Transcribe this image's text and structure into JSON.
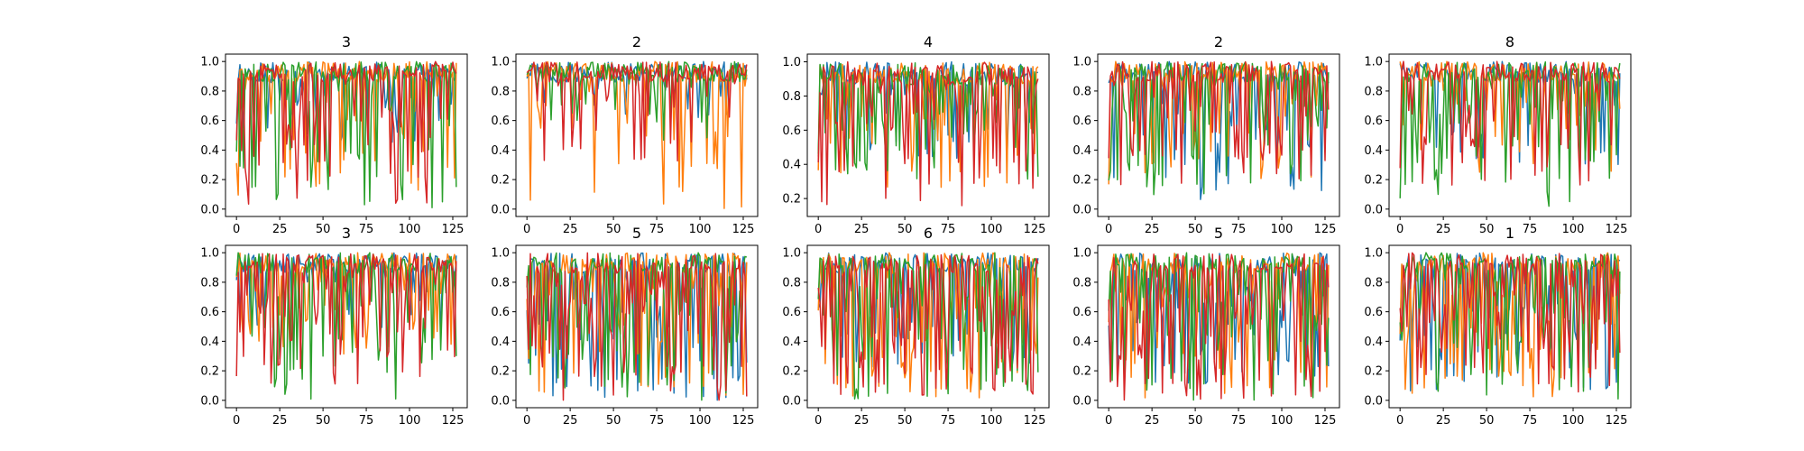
{
  "chart_data": [
    {
      "type": "line",
      "title": "3",
      "x_range": [
        0,
        127
      ],
      "xlim": [
        -6.35,
        133.35
      ],
      "xticks": [
        0,
        25,
        50,
        75,
        100,
        125
      ],
      "ylim": [
        -0.05,
        1.05
      ],
      "yticks": [
        "0.0",
        "0.2",
        "0.4",
        "0.6",
        "0.8",
        "1.0"
      ],
      "series": [
        {
          "color": "#1f77b4",
          "min": 0.45,
          "dip_prob": 0.3,
          "seed": 11
        },
        {
          "color": "#ff7f0e",
          "min": 0.0,
          "dip_prob": 0.25,
          "seed": 12
        },
        {
          "color": "#2ca02c",
          "min": 0.0,
          "dip_prob": 0.3,
          "seed": 13
        },
        {
          "color": "#d62728",
          "min": 0.0,
          "dip_prob": 0.4,
          "seed": 14
        }
      ]
    },
    {
      "type": "line",
      "title": "2",
      "x_range": [
        0,
        127
      ],
      "xlim": [
        -6.35,
        133.35
      ],
      "xticks": [
        0,
        25,
        50,
        75,
        100,
        125
      ],
      "ylim": [
        -0.05,
        1.05
      ],
      "yticks": [
        "0.0",
        "0.2",
        "0.4",
        "0.6",
        "0.8",
        "1.0"
      ],
      "series": [
        {
          "color": "#1f77b4",
          "min": 0.6,
          "dip_prob": 0.12,
          "seed": 21
        },
        {
          "color": "#ff7f0e",
          "min": 0.0,
          "dip_prob": 0.15,
          "seed": 22
        },
        {
          "color": "#2ca02c",
          "min": 0.45,
          "dip_prob": 0.12,
          "seed": 23
        },
        {
          "color": "#d62728",
          "min": 0.3,
          "dip_prob": 0.18,
          "seed": 24
        }
      ]
    },
    {
      "type": "line",
      "title": "4",
      "x_range": [
        0,
        127
      ],
      "xlim": [
        -6.35,
        133.35
      ],
      "xticks": [
        0,
        25,
        50,
        75,
        100,
        125
      ],
      "ylim": [
        0.095,
        1.045
      ],
      "yticks": [
        "0.2",
        "0.4",
        "0.6",
        "0.8",
        "1.0"
      ],
      "series": [
        {
          "color": "#1f77b4",
          "min": 0.4,
          "dip_prob": 0.3,
          "seed": 31
        },
        {
          "color": "#ff7f0e",
          "min": 0.25,
          "dip_prob": 0.35,
          "seed": 32
        },
        {
          "color": "#2ca02c",
          "min": 0.3,
          "dip_prob": 0.35,
          "seed": 33
        },
        {
          "color": "#d62728",
          "min": 0.15,
          "dip_prob": 0.4,
          "seed": 34
        }
      ]
    },
    {
      "type": "line",
      "title": "2",
      "x_range": [
        0,
        127
      ],
      "xlim": [
        -6.35,
        133.35
      ],
      "xticks": [
        0,
        25,
        50,
        75,
        100,
        125
      ],
      "ylim": [
        -0.05,
        1.05
      ],
      "yticks": [
        "0.0",
        "0.2",
        "0.4",
        "0.6",
        "0.8",
        "1.0"
      ],
      "series": [
        {
          "color": "#1f77b4",
          "min": 0.05,
          "dip_prob": 0.3,
          "seed": 41
        },
        {
          "color": "#ff7f0e",
          "min": 0.1,
          "dip_prob": 0.3,
          "seed": 42
        },
        {
          "color": "#2ca02c",
          "min": 0.05,
          "dip_prob": 0.35,
          "seed": 43
        },
        {
          "color": "#d62728",
          "min": 0.15,
          "dip_prob": 0.4,
          "seed": 44
        }
      ]
    },
    {
      "type": "line",
      "title": "8",
      "x_range": [
        0,
        127
      ],
      "xlim": [
        -6.35,
        133.35
      ],
      "xticks": [
        0,
        25,
        50,
        75,
        100,
        125
      ],
      "ylim": [
        -0.05,
        1.05
      ],
      "yticks": [
        "0.0",
        "0.2",
        "0.4",
        "0.6",
        "0.8",
        "1.0"
      ],
      "series": [
        {
          "color": "#1f77b4",
          "min": 0.3,
          "dip_prob": 0.25,
          "seed": 51
        },
        {
          "color": "#ff7f0e",
          "min": 0.25,
          "dip_prob": 0.25,
          "seed": 52
        },
        {
          "color": "#2ca02c",
          "min": 0.0,
          "dip_prob": 0.35,
          "seed": 53
        },
        {
          "color": "#d62728",
          "min": 0.15,
          "dip_prob": 0.35,
          "seed": 54
        }
      ]
    },
    {
      "type": "line",
      "title": "3",
      "x_range": [
        0,
        127
      ],
      "xlim": [
        -6.35,
        133.35
      ],
      "xticks": [
        0,
        25,
        50,
        75,
        100,
        125
      ],
      "ylim": [
        -0.05,
        1.05
      ],
      "yticks": [
        "0.0",
        "0.2",
        "0.4",
        "0.6",
        "0.8",
        "1.0"
      ],
      "series": [
        {
          "color": "#1f77b4",
          "min": 0.4,
          "dip_prob": 0.3,
          "seed": 61
        },
        {
          "color": "#ff7f0e",
          "min": 0.3,
          "dip_prob": 0.3,
          "seed": 62
        },
        {
          "color": "#2ca02c",
          "min": 0.0,
          "dip_prob": 0.3,
          "seed": 63
        },
        {
          "color": "#d62728",
          "min": 0.1,
          "dip_prob": 0.45,
          "seed": 64
        }
      ]
    },
    {
      "type": "line",
      "title": "5",
      "x_range": [
        0,
        127
      ],
      "xlim": [
        -6.35,
        133.35
      ],
      "xticks": [
        0,
        25,
        50,
        75,
        100,
        125
      ],
      "ylim": [
        -0.05,
        1.05
      ],
      "yticks": [
        "0.0",
        "0.2",
        "0.4",
        "0.6",
        "0.8",
        "1.0"
      ],
      "series": [
        {
          "color": "#1f77b4",
          "min": 0.0,
          "dip_prob": 0.45,
          "seed": 71
        },
        {
          "color": "#ff7f0e",
          "min": 0.0,
          "dip_prob": 0.45,
          "seed": 72
        },
        {
          "color": "#2ca02c",
          "min": 0.0,
          "dip_prob": 0.45,
          "seed": 73
        },
        {
          "color": "#d62728",
          "min": 0.0,
          "dip_prob": 0.5,
          "seed": 74
        }
      ]
    },
    {
      "type": "line",
      "title": "6",
      "x_range": [
        0,
        127
      ],
      "xlim": [
        -6.35,
        133.35
      ],
      "xticks": [
        0,
        25,
        50,
        75,
        100,
        125
      ],
      "ylim": [
        -0.05,
        1.05
      ],
      "yticks": [
        "0.0",
        "0.2",
        "0.4",
        "0.6",
        "0.8",
        "1.0"
      ],
      "series": [
        {
          "color": "#1f77b4",
          "min": 0.2,
          "dip_prob": 0.35,
          "seed": 81
        },
        {
          "color": "#ff7f0e",
          "min": 0.0,
          "dip_prob": 0.45,
          "seed": 82
        },
        {
          "color": "#2ca02c",
          "min": 0.0,
          "dip_prob": 0.45,
          "seed": 83
        },
        {
          "color": "#d62728",
          "min": 0.0,
          "dip_prob": 0.5,
          "seed": 84
        }
      ]
    },
    {
      "type": "line",
      "title": "5",
      "x_range": [
        0,
        127
      ],
      "xlim": [
        -6.35,
        133.35
      ],
      "xticks": [
        0,
        25,
        50,
        75,
        100,
        125
      ],
      "ylim": [
        -0.05,
        1.05
      ],
      "yticks": [
        "0.0",
        "0.2",
        "0.4",
        "0.6",
        "0.8",
        "1.0"
      ],
      "series": [
        {
          "color": "#1f77b4",
          "min": 0.1,
          "dip_prob": 0.45,
          "seed": 91
        },
        {
          "color": "#ff7f0e",
          "min": 0.0,
          "dip_prob": 0.45,
          "seed": 92
        },
        {
          "color": "#2ca02c",
          "min": 0.0,
          "dip_prob": 0.45,
          "seed": 93
        },
        {
          "color": "#d62728",
          "min": 0.0,
          "dip_prob": 0.5,
          "seed": 94
        }
      ]
    },
    {
      "type": "line",
      "title": "1",
      "x_range": [
        0,
        127
      ],
      "xlim": [
        -6.35,
        133.35
      ],
      "xticks": [
        0,
        25,
        50,
        75,
        100,
        125
      ],
      "ylim": [
        -0.05,
        1.05
      ],
      "yticks": [
        "0.0",
        "0.2",
        "0.4",
        "0.6",
        "0.8",
        "1.0"
      ],
      "series": [
        {
          "color": "#1f77b4",
          "min": 0.05,
          "dip_prob": 0.4,
          "seed": 101
        },
        {
          "color": "#ff7f0e",
          "min": 0.0,
          "dip_prob": 0.45,
          "seed": 102
        },
        {
          "color": "#2ca02c",
          "min": 0.0,
          "dip_prob": 0.45,
          "seed": 103
        },
        {
          "color": "#d62728",
          "min": 0.05,
          "dip_prob": 0.5,
          "seed": 104
        }
      ]
    }
  ]
}
